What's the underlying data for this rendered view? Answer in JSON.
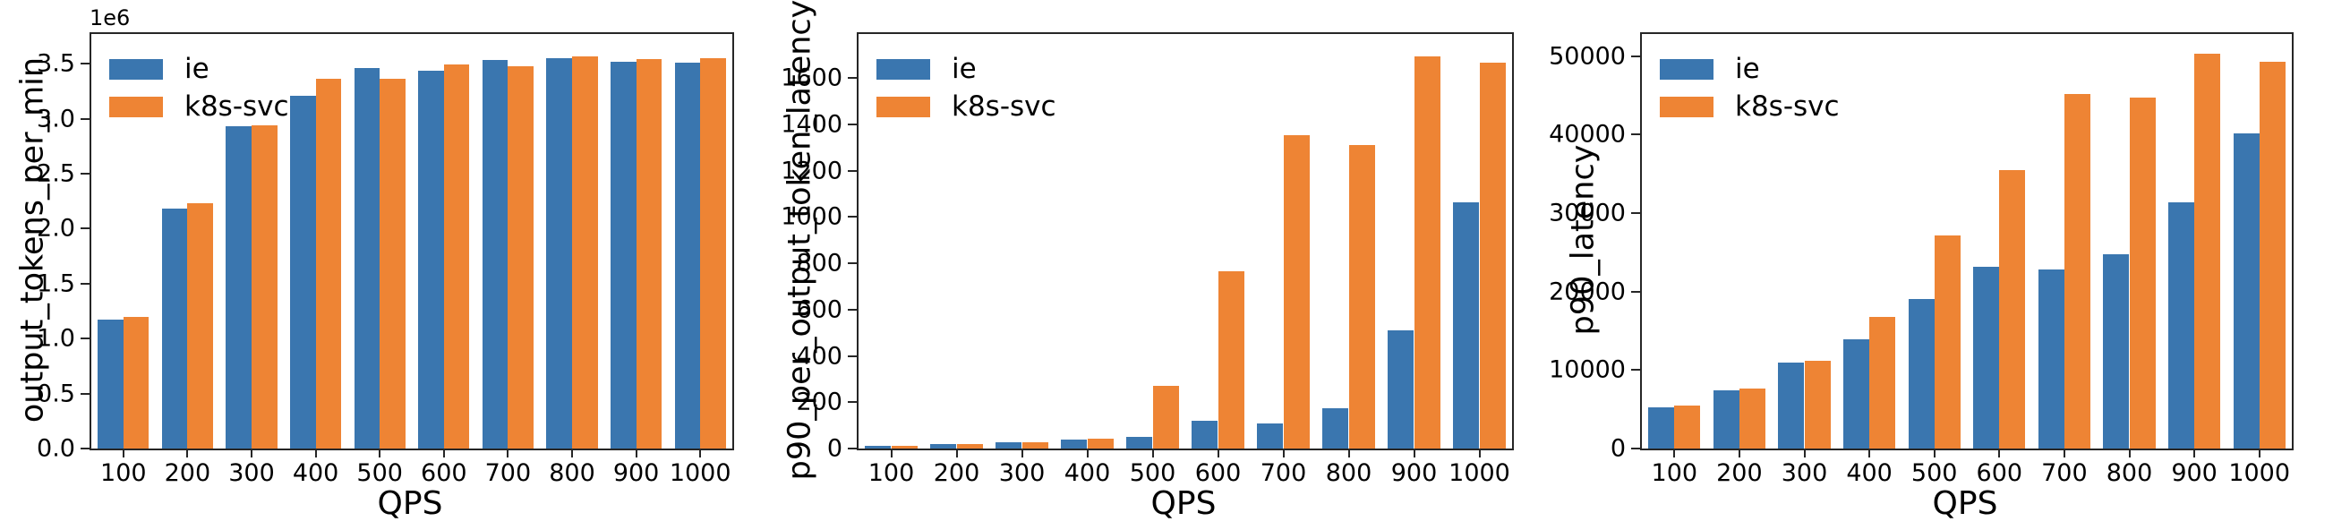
{
  "legend": [
    {
      "label": "ie",
      "color": "#3a76af"
    },
    {
      "label": "k8s-svc",
      "color": "#ee8434"
    }
  ],
  "colors": {
    "ie": "#3a76af",
    "k8s_svc": "#ee8434",
    "spine": "#262626",
    "text": "#000000",
    "background": "#ffffff"
  },
  "chart_data": [
    {
      "type": "bar",
      "title": "",
      "ylabel": "output_tokens_per_min",
      "xlabel": "QPS",
      "offset_label": "1e6",
      "grid": false,
      "legend_position": "upper left",
      "categories": [
        "100",
        "200",
        "300",
        "400",
        "500",
        "600",
        "700",
        "800",
        "900",
        "1000"
      ],
      "series": [
        {
          "name": "ie",
          "color": "#3a76af",
          "values": [
            1170000,
            2180000,
            2930000,
            3210000,
            3460000,
            3440000,
            3530000,
            3550000,
            3520000,
            3510000
          ]
        },
        {
          "name": "k8s-svc",
          "color": "#ee8434",
          "values": [
            1200000,
            2230000,
            2940000,
            3360000,
            3360000,
            3490000,
            3480000,
            3570000,
            3540000,
            3550000
          ]
        }
      ],
      "yticks": [
        0,
        500000,
        1000000,
        1500000,
        2000000,
        2500000,
        3000000,
        3500000
      ],
      "ytick_labels": [
        "0.0",
        "0.5",
        "1.0",
        "1.5",
        "2.0",
        "2.5",
        "3.0",
        "3.5"
      ],
      "ylim": [
        0,
        3770000
      ]
    },
    {
      "type": "bar",
      "title": "",
      "ylabel": "p90_per_output_token_latency",
      "xlabel": "QPS",
      "offset_label": "",
      "grid": false,
      "legend_position": "upper left",
      "categories": [
        "100",
        "200",
        "300",
        "400",
        "500",
        "600",
        "700",
        "800",
        "900",
        "1000"
      ],
      "series": [
        {
          "name": "ie",
          "color": "#3a76af",
          "values": [
            10,
            18,
            27,
            38,
            50,
            118,
            108,
            175,
            512,
            1065
          ]
        },
        {
          "name": "k8s-svc",
          "color": "#ee8434",
          "values": [
            10,
            18,
            27,
            42,
            270,
            765,
            1355,
            1310,
            1695,
            1668
          ]
        }
      ],
      "yticks": [
        0,
        200,
        400,
        600,
        800,
        1000,
        1200,
        1400,
        1600
      ],
      "ytick_labels": [
        "0",
        "200",
        "400",
        "600",
        "800",
        "1000",
        "1200",
        "1400",
        "1600"
      ],
      "ylim": [
        0,
        1790
      ]
    },
    {
      "type": "bar",
      "title": "",
      "ylabel": "p90_latency",
      "xlabel": "QPS",
      "offset_label": "",
      "grid": false,
      "legend_position": "upper left",
      "categories": [
        "100",
        "200",
        "300",
        "400",
        "500",
        "600",
        "700",
        "800",
        "900",
        "1000"
      ],
      "series": [
        {
          "name": "ie",
          "color": "#3a76af",
          "values": [
            5300,
            7380,
            10950,
            13900,
            19100,
            23200,
            22850,
            24800,
            31400,
            40200
          ]
        },
        {
          "name": "k8s-svc",
          "color": "#ee8434",
          "values": [
            5450,
            7600,
            11200,
            16800,
            27200,
            35500,
            45200,
            44700,
            50300,
            49300
          ]
        }
      ],
      "yticks": [
        0,
        10000,
        20000,
        30000,
        40000,
        50000
      ],
      "ytick_labels": [
        "0",
        "10000",
        "20000",
        "30000",
        "40000",
        "50000"
      ],
      "ylim": [
        0,
        52800
      ]
    }
  ]
}
